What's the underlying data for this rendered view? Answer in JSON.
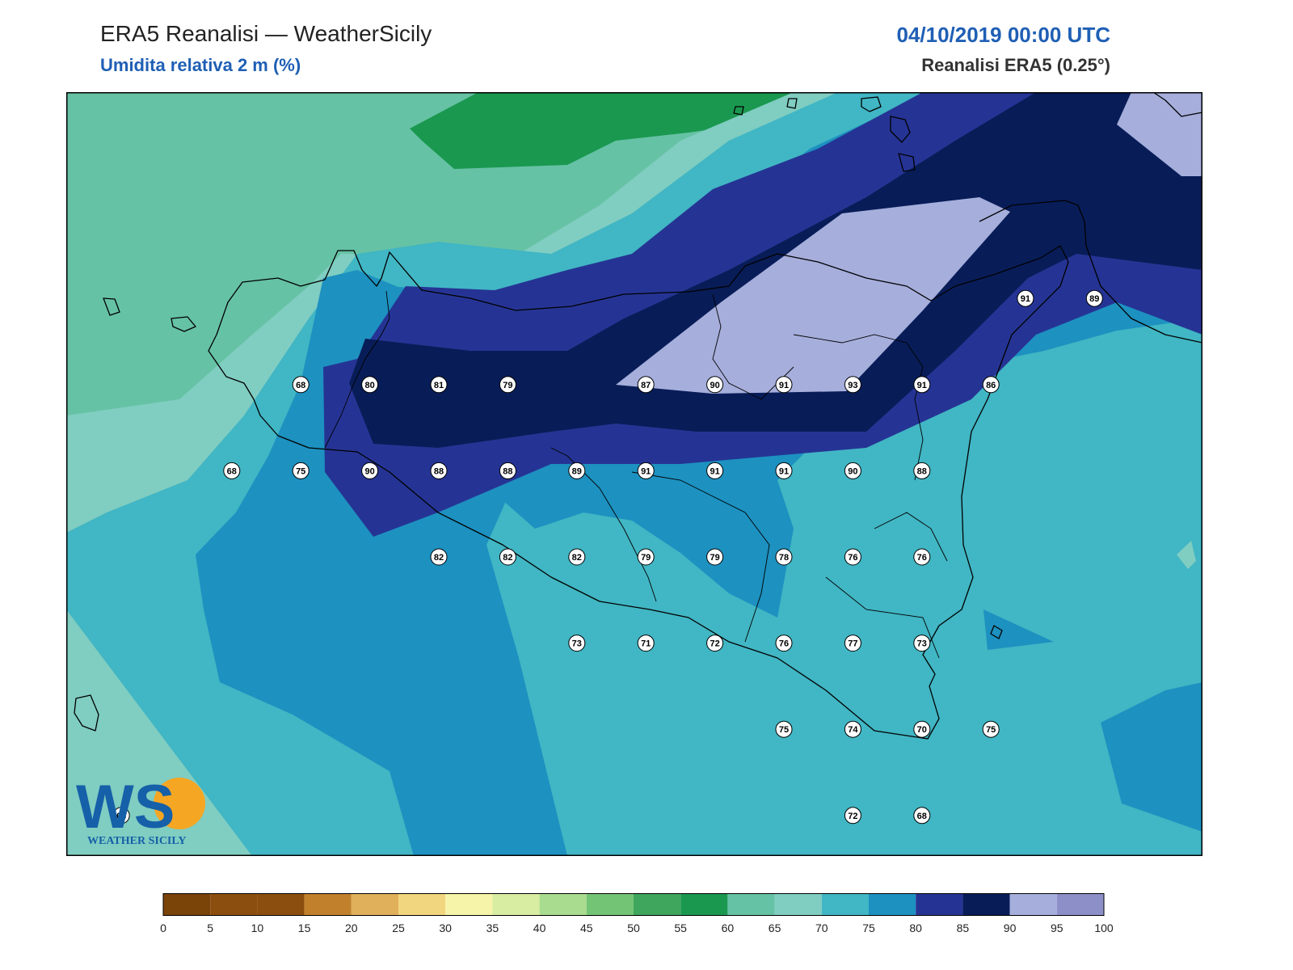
{
  "header": {
    "title": "ERA5 Reanalisi — WeatherSicily",
    "subtitle": "Umidita relativa 2 m (%)",
    "datetime": "04/10/2019 00:00 UTC",
    "source": "Reanalisi ERA5 (0.25°)"
  },
  "logo": {
    "letters": "WS",
    "text": "WEATHER SICILY"
  },
  "colorbar": {
    "ticks": [
      "0",
      "5",
      "10",
      "15",
      "20",
      "25",
      "30",
      "35",
      "40",
      "45",
      "50",
      "55",
      "60",
      "65",
      "70",
      "75",
      "80",
      "85",
      "90",
      "95",
      "100"
    ],
    "colors": [
      "#7a4308",
      "#8c4e0e",
      "#8c4e0e",
      "#c1812c",
      "#e0b05a",
      "#f2d67f",
      "#f6f4a8",
      "#d8eda2",
      "#a9dc8e",
      "#74c476",
      "#3fa65e",
      "#1a9850",
      "#66c2a4",
      "#80cdc1",
      "#41b6c4",
      "#1d91c0",
      "#253494",
      "#081d58",
      "#a6aedc",
      "#8c8fc8"
    ]
  },
  "labels": [
    {
      "v": "68",
      "r": 3,
      "c": 3
    },
    {
      "v": "80",
      "r": 3,
      "c": 4
    },
    {
      "v": "81",
      "r": 3,
      "c": 5
    },
    {
      "v": "79",
      "r": 3,
      "c": 6
    },
    {
      "v": "87",
      "r": 3,
      "c": 8
    },
    {
      "v": "90",
      "r": 3,
      "c": 9
    },
    {
      "v": "91",
      "r": 3,
      "c": 10
    },
    {
      "v": "93",
      "r": 3,
      "c": 11
    },
    {
      "v": "91",
      "r": 3,
      "c": 12
    },
    {
      "v": "86",
      "r": 3,
      "c": 13
    },
    {
      "v": "91",
      "r": 2,
      "c": 13.5
    },
    {
      "v": "89",
      "r": 2,
      "c": 14.5
    },
    {
      "v": "68",
      "r": 4,
      "c": 2
    },
    {
      "v": "75",
      "r": 4,
      "c": 3
    },
    {
      "v": "90",
      "r": 4,
      "c": 4
    },
    {
      "v": "88",
      "r": 4,
      "c": 5
    },
    {
      "v": "88",
      "r": 4,
      "c": 6
    },
    {
      "v": "89",
      "r": 4,
      "c": 7
    },
    {
      "v": "91",
      "r": 4,
      "c": 8
    },
    {
      "v": "91",
      "r": 4,
      "c": 9
    },
    {
      "v": "91",
      "r": 4,
      "c": 10
    },
    {
      "v": "90",
      "r": 4,
      "c": 11
    },
    {
      "v": "88",
      "r": 4,
      "c": 12
    },
    {
      "v": "82",
      "r": 5,
      "c": 5
    },
    {
      "v": "82",
      "r": 5,
      "c": 6
    },
    {
      "v": "82",
      "r": 5,
      "c": 7
    },
    {
      "v": "79",
      "r": 5,
      "c": 8
    },
    {
      "v": "79",
      "r": 5,
      "c": 9
    },
    {
      "v": "78",
      "r": 5,
      "c": 10
    },
    {
      "v": "76",
      "r": 5,
      "c": 11
    },
    {
      "v": "76",
      "r": 5,
      "c": 12
    },
    {
      "v": "73",
      "r": 6,
      "c": 7
    },
    {
      "v": "71",
      "r": 6,
      "c": 8
    },
    {
      "v": "72",
      "r": 6,
      "c": 9
    },
    {
      "v": "76",
      "r": 6,
      "c": 10
    },
    {
      "v": "77",
      "r": 6,
      "c": 11
    },
    {
      "v": "73",
      "r": 6,
      "c": 12
    },
    {
      "v": "75",
      "r": 7,
      "c": 10
    },
    {
      "v": "74",
      "r": 7,
      "c": 11
    },
    {
      "v": "70",
      "r": 7,
      "c": 12
    },
    {
      "v": "75",
      "r": 7,
      "c": 13
    },
    {
      "v": "68",
      "r": 8,
      "c": 0.4
    },
    {
      "v": "72",
      "r": 8,
      "c": 11
    },
    {
      "v": "68",
      "r": 8,
      "c": 12
    }
  ]
}
